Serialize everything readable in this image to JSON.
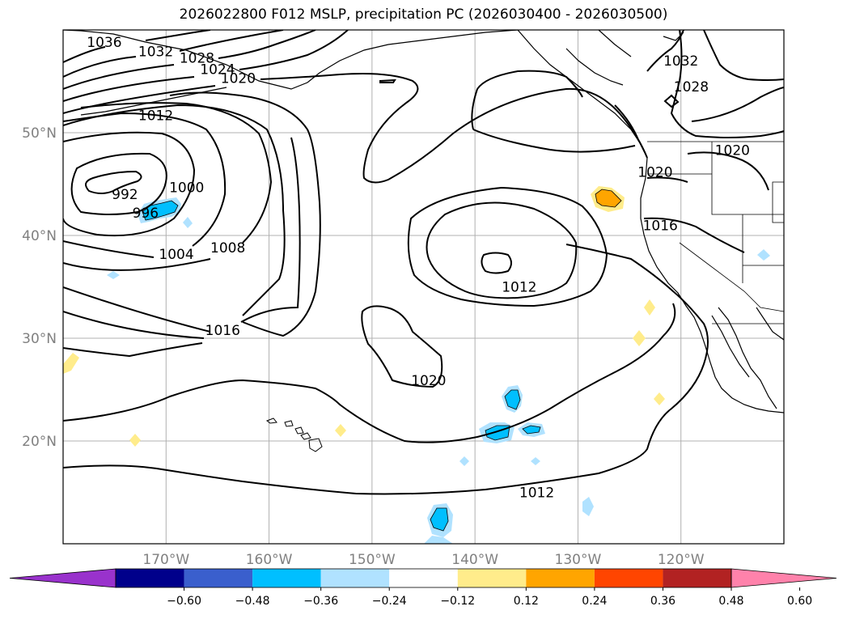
{
  "chart_data": {
    "type": "contour-map",
    "title": "2026022800 F012 MSLP, precipitation PC (2026030400 - 2026030500)",
    "map_extent": {
      "lon": [
        -180,
        -110
      ],
      "lat": [
        10,
        60
      ]
    },
    "grid": true,
    "lat_ticks": [
      {
        "value": 50,
        "label": "50°N"
      },
      {
        "value": 40,
        "label": "40°N"
      },
      {
        "value": 30,
        "label": "30°N"
      },
      {
        "value": 20,
        "label": "20°N"
      }
    ],
    "lon_ticks": [
      {
        "value": -170,
        "label": "170°W"
      },
      {
        "value": -160,
        "label": "160°W"
      },
      {
        "value": -150,
        "label": "150°W"
      },
      {
        "value": -140,
        "label": "140°W"
      },
      {
        "value": -130,
        "label": "130°W"
      },
      {
        "value": -120,
        "label": "120°W"
      }
    ],
    "mslp_contour_labels": [
      {
        "text": "1036",
        "lon": -176.0,
        "lat": 58.8
      },
      {
        "text": "1032",
        "lon": -171.0,
        "lat": 57.9
      },
      {
        "text": "1028",
        "lon": -167.0,
        "lat": 57.3
      },
      {
        "text": "1024",
        "lon": -165.0,
        "lat": 56.2
      },
      {
        "text": "1020",
        "lon": -163.0,
        "lat": 55.3
      },
      {
        "text": "1012",
        "lon": -171.0,
        "lat": 51.7
      },
      {
        "text": "992",
        "lon": -174.0,
        "lat": 44.0
      },
      {
        "text": "996",
        "lon": -172.0,
        "lat": 42.2
      },
      {
        "text": "1000",
        "lon": -168.0,
        "lat": 44.7
      },
      {
        "text": "1004",
        "lon": -169.0,
        "lat": 38.2
      },
      {
        "text": "1008",
        "lon": -164.0,
        "lat": 38.8
      },
      {
        "text": "1016",
        "lon": -164.5,
        "lat": 30.8
      },
      {
        "text": "1020",
        "lon": -144.5,
        "lat": 25.9
      },
      {
        "text": "1012",
        "lon": -135.7,
        "lat": 35.0
      },
      {
        "text": "1012",
        "lon": -134.0,
        "lat": 15.0
      },
      {
        "text": "1032",
        "lon": -120.0,
        "lat": 57.0
      },
      {
        "text": "1028",
        "lon": -119.0,
        "lat": 54.5
      },
      {
        "text": "1020",
        "lon": -115.0,
        "lat": 48.3
      },
      {
        "text": "1020",
        "lon": -122.5,
        "lat": 46.2
      },
      {
        "text": "1016",
        "lon": -122.0,
        "lat": 41.0
      }
    ],
    "colorbar": {
      "ticks": [
        "−0.60",
        "−0.48",
        "−0.36",
        "−0.24",
        "−0.12",
        "0.12",
        "0.24",
        "0.36",
        "0.48",
        "0.60"
      ],
      "colors": [
        "#9932cc",
        "#00008b",
        "#3a5fcd",
        "#00bfff",
        "#b0e2ff",
        "#ffffff",
        "#ffec8b",
        "#ffa500",
        "#ff4500",
        "#b22222",
        "#ff82ab"
      ],
      "extend": "both"
    },
    "precip_anomalies": [
      {
        "sign": "negative",
        "level": "-0.36",
        "lon": -170.0,
        "lat": 42.0
      },
      {
        "sign": "positive",
        "level": "0.24",
        "lon": -127.0,
        "lat": 43.5
      },
      {
        "sign": "negative",
        "level": "-0.36",
        "lon": -137.0,
        "lat": 24.0
      },
      {
        "sign": "negative",
        "level": "-0.36",
        "lon": -137.5,
        "lat": 20.8
      },
      {
        "sign": "negative",
        "level": "-0.36",
        "lon": -134.0,
        "lat": 21.0
      },
      {
        "sign": "negative",
        "level": "-0.36",
        "lon": -143.0,
        "lat": 12.2
      },
      {
        "sign": "positive",
        "level": "0.12",
        "lon": -179.0,
        "lat": 27.5
      },
      {
        "sign": "positive",
        "level": "0.12",
        "lon": -124.5,
        "lat": 30.0
      },
      {
        "sign": "positive",
        "level": "0.12",
        "lon": -123.0,
        "lat": 33.0
      },
      {
        "sign": "positive",
        "level": "0.12",
        "lon": -122.0,
        "lat": 24.0
      },
      {
        "sign": "positive",
        "level": "0.12",
        "lon": -173.0,
        "lat": 20.0
      },
      {
        "sign": "positive",
        "level": "0.12",
        "lon": -153.0,
        "lat": 21.0
      }
    ]
  }
}
